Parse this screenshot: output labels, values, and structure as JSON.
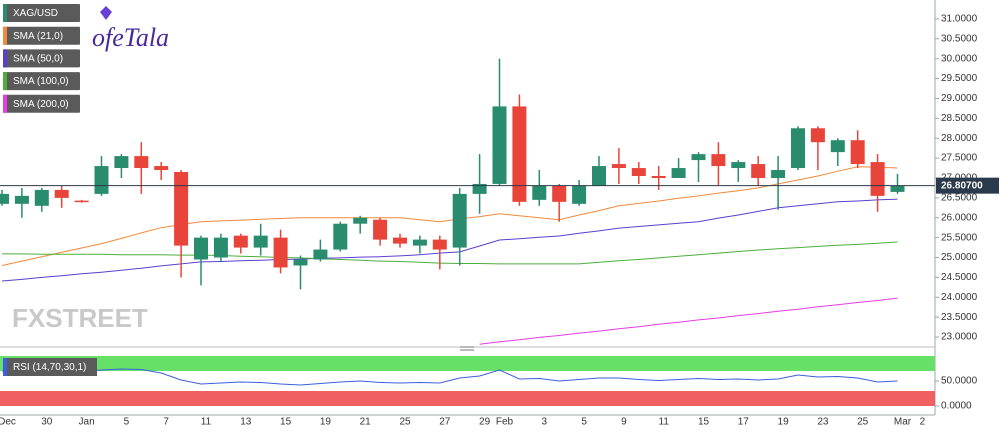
{
  "chart_data": [
    {
      "type": "candlestick",
      "name": "XAG/USD",
      "up_color": "#2a8c6e",
      "down_color": "#e8443a",
      "logo": "ofeTala",
      "watermark": "FXSTREET",
      "categories": [
        "Dec",
        null,
        "30",
        null,
        "Jan",
        null,
        "5",
        null,
        "7",
        null,
        "11",
        null,
        "13",
        null,
        "15",
        null,
        "19",
        null,
        "21",
        null,
        "25",
        null,
        "27",
        null,
        "29",
        "Feb",
        null,
        "3",
        null,
        "5",
        null,
        "9",
        null,
        "11",
        null,
        "15",
        null,
        "17",
        null,
        "19",
        null,
        "23",
        null,
        "25",
        null,
        "Mar",
        "2"
      ],
      "open": [
        26.35,
        26.35,
        26.3,
        26.7,
        26.43,
        26.6,
        27.25,
        27.55,
        27.3,
        27.15,
        24.95,
        25.0,
        25.55,
        25.25,
        25.5,
        24.8,
        24.95,
        25.2,
        25.85,
        25.95,
        25.5,
        25.3,
        25.45,
        25.25,
        26.6,
        26.85,
        28.8,
        26.45,
        26.8,
        26.35,
        26.8,
        27.35,
        27.25,
        27.05,
        27.0,
        27.45,
        27.6,
        27.25,
        27.35,
        27.0,
        27.25,
        28.25,
        27.65,
        27.95,
        27.4,
        26.65,
        null
      ],
      "high": [
        26.7,
        26.75,
        26.75,
        26.8,
        26.45,
        27.55,
        27.6,
        27.9,
        27.4,
        27.2,
        25.55,
        25.6,
        25.6,
        25.85,
        25.7,
        25.05,
        25.45,
        25.9,
        26.05,
        26.0,
        25.6,
        25.55,
        25.55,
        26.75,
        27.6,
        30.0,
        29.1,
        27.2,
        26.85,
        26.95,
        27.55,
        27.75,
        27.4,
        27.3,
        27.5,
        27.65,
        27.9,
        27.45,
        27.55,
        27.55,
        28.3,
        28.3,
        28.0,
        28.2,
        27.6,
        27.1,
        null
      ],
      "low": [
        26.3,
        26.0,
        26.15,
        26.25,
        26.38,
        26.55,
        27.0,
        26.6,
        26.95,
        24.5,
        24.3,
        24.9,
        25.1,
        25.05,
        24.6,
        24.2,
        24.9,
        25.15,
        25.6,
        25.3,
        25.25,
        25.1,
        24.7,
        24.8,
        26.1,
        26.8,
        26.3,
        26.3,
        25.9,
        26.3,
        26.8,
        26.85,
        26.85,
        26.7,
        27.0,
        26.9,
        26.8,
        26.9,
        26.8,
        26.2,
        27.2,
        27.2,
        27.3,
        27.25,
        26.15,
        26.6,
        null
      ],
      "close": [
        26.6,
        26.55,
        26.7,
        26.5,
        26.4,
        27.3,
        27.55,
        27.25,
        27.2,
        25.3,
        25.5,
        25.5,
        25.25,
        25.55,
        24.75,
        24.95,
        25.2,
        25.85,
        26.0,
        25.45,
        25.35,
        25.45,
        25.2,
        26.6,
        26.85,
        28.8,
        26.4,
        26.8,
        26.4,
        26.8,
        27.3,
        27.25,
        27.05,
        27.0,
        27.25,
        27.6,
        27.3,
        27.4,
        27.0,
        27.2,
        28.25,
        27.9,
        27.95,
        27.35,
        26.55,
        26.8,
        null
      ],
      "overlays": [
        {
          "name": "SMA (21,0)",
          "color": "#f08a3c",
          "values": [
            24.8,
            24.91,
            25.02,
            25.13,
            25.24,
            25.35,
            25.48,
            25.62,
            25.75,
            25.83,
            25.9,
            25.92,
            25.94,
            25.96,
            25.98,
            26.0,
            26.0,
            26.0,
            26.0,
            26.0,
            26.0,
            25.95,
            25.9,
            25.97,
            26.03,
            26.1,
            26.05,
            26.0,
            25.95,
            26.07,
            26.18,
            26.3,
            26.36,
            26.42,
            26.49,
            26.55,
            26.62,
            26.68,
            26.75,
            26.85,
            26.95,
            27.05,
            27.17,
            27.28,
            27.27,
            27.25,
            null
          ]
        },
        {
          "name": "SMA (50,0)",
          "color": "#5b3fd1",
          "values": [
            24.41,
            24.45,
            24.5,
            24.54,
            24.59,
            24.63,
            24.68,
            24.73,
            24.79,
            24.84,
            24.89,
            24.9,
            24.92,
            24.93,
            24.95,
            24.96,
            24.98,
            24.99,
            25.01,
            25.02,
            25.04,
            25.07,
            25.11,
            25.14,
            25.29,
            25.44,
            25.47,
            25.51,
            25.54,
            25.61,
            25.67,
            25.74,
            25.78,
            25.82,
            25.86,
            25.9,
            25.99,
            26.07,
            26.16,
            26.25,
            26.3,
            26.35,
            26.4,
            26.42,
            26.45,
            26.47,
            null
          ]
        },
        {
          "name": "SMA (100,0)",
          "color": "#4caf3c",
          "values": [
            25.09,
            25.09,
            25.08,
            25.08,
            25.08,
            25.08,
            25.07,
            25.07,
            25.07,
            25.06,
            25.06,
            25.05,
            25.03,
            25.02,
            25.0,
            24.99,
            24.97,
            24.95,
            24.93,
            24.91,
            24.9,
            24.88,
            24.86,
            24.85,
            24.85,
            24.84,
            24.84,
            24.84,
            24.84,
            24.84,
            24.88,
            24.92,
            24.95,
            24.99,
            25.03,
            25.07,
            25.11,
            25.15,
            25.19,
            25.22,
            25.25,
            25.28,
            25.31,
            25.33,
            25.36,
            25.39,
            null
          ]
        },
        {
          "name": "SMA (200,0)",
          "color": "#e83ce8",
          "values": [
            null,
            null,
            null,
            null,
            null,
            null,
            null,
            null,
            null,
            null,
            null,
            null,
            null,
            null,
            null,
            null,
            null,
            null,
            null,
            null,
            null,
            null,
            null,
            null,
            22.82,
            22.88,
            22.93,
            22.99,
            23.04,
            23.1,
            23.15,
            23.21,
            23.26,
            23.32,
            23.37,
            23.43,
            23.48,
            23.54,
            23.59,
            23.65,
            23.7,
            23.76,
            23.81,
            23.87,
            23.92,
            23.98,
            null
          ]
        }
      ],
      "last_price": {
        "value": 26.807,
        "label": "26.80700"
      },
      "ylim": [
        22.8,
        31.35
      ],
      "yticks": [
        {
          "value": 23,
          "label": "23.0000"
        },
        {
          "value": 23.5,
          "label": "23.5000"
        },
        {
          "value": 24,
          "label": "24.0000"
        },
        {
          "value": 24.5,
          "label": "24.5000"
        },
        {
          "value": 25,
          "label": "25.0000"
        },
        {
          "value": 25.5,
          "label": "25.5000"
        },
        {
          "value": 26,
          "label": "26.0000"
        },
        {
          "value": 26.5,
          "label": "26.5000"
        },
        {
          "value": 27,
          "label": "27.0000"
        },
        {
          "value": 27.5,
          "label": "27.5000"
        },
        {
          "value": 28,
          "label": "28.0000"
        },
        {
          "value": 28.5,
          "label": "28.5000"
        },
        {
          "value": 29,
          "label": "29.0000"
        },
        {
          "value": 29.5,
          "label": "29.5000"
        },
        {
          "value": 30,
          "label": "30.0000"
        },
        {
          "value": 30.5,
          "label": "30.5000"
        },
        {
          "value": 31,
          "label": "31.0000"
        }
      ]
    },
    {
      "type": "line",
      "series": [
        {
          "name": "RSI (14,70,30,1)",
          "color": "#3b5fe0",
          "values": [
            70,
            71,
            72,
            71,
            70,
            72,
            74,
            73,
            66,
            52,
            44,
            46,
            48,
            47,
            44,
            42,
            45,
            48,
            50,
            47,
            46,
            47,
            46,
            56,
            60,
            72,
            54,
            55,
            50,
            53,
            56,
            56,
            53,
            51,
            53,
            55,
            53,
            54,
            52,
            54,
            62,
            58,
            59,
            56,
            48,
            50,
            null
          ]
        }
      ],
      "bands": [
        {
          "from": 70,
          "to": 100,
          "color": "#66e066"
        },
        {
          "from": 0,
          "to": 30,
          "color": "#f06060"
        }
      ],
      "ylim": [
        -12,
        102
      ],
      "yticks": [
        {
          "value": 0,
          "label": "0.0000"
        },
        {
          "value": 50,
          "label": "50.0000"
        }
      ]
    }
  ]
}
